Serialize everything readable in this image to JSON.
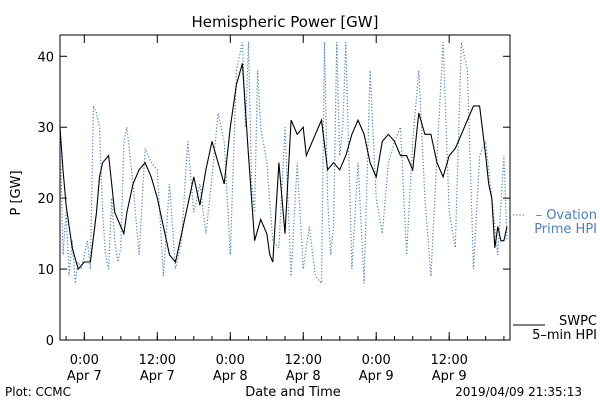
{
  "chart_data": {
    "type": "line",
    "title": "Hemispheric Power [GW]",
    "ylabel": "P [GW]",
    "xlabel": "Date and Time",
    "ylim": [
      0,
      43
    ],
    "yticks": [
      0,
      10,
      20,
      30,
      40
    ],
    "xlim": [
      "2019-04-06T20:00",
      "2019-04-09T22:00"
    ],
    "xticks": [
      {
        "time": "2019-04-07T00:00",
        "line1": "0:00",
        "line2": "Apr 7"
      },
      {
        "time": "2019-04-07T12:00",
        "line1": "12:00",
        "line2": "Apr 7"
      },
      {
        "time": "2019-04-08T00:00",
        "line1": "0:00",
        "line2": "Apr 8"
      },
      {
        "time": "2019-04-08T12:00",
        "line1": "12:00",
        "line2": "Apr 8"
      },
      {
        "time": "2019-04-09T00:00",
        "line1": "0:00",
        "line2": "Apr 9"
      },
      {
        "time": "2019-04-09T12:00",
        "line1": "12:00",
        "line2": "Apr 9"
      }
    ],
    "grid": false,
    "legend_placement": "right",
    "series": [
      {
        "name": "Ovation Prime HPI",
        "legend_lines": [
          "– Ovation",
          "Prime HPI"
        ],
        "color": "#4a7fc0",
        "style": "dotted",
        "x": [
          "2019-04-06T20:00",
          "2019-04-06T20:30",
          "2019-04-06T21:00",
          "2019-04-06T21:30",
          "2019-04-06T22:00",
          "2019-04-06T22:30",
          "2019-04-06T23:00",
          "2019-04-06T23:30",
          "2019-04-07T00:00",
          "2019-04-07T00:30",
          "2019-04-07T01:00",
          "2019-04-07T01:30",
          "2019-04-07T02:00",
          "2019-04-07T02:30",
          "2019-04-07T03:00",
          "2019-04-07T03:30",
          "2019-04-07T04:00",
          "2019-04-07T04:30",
          "2019-04-07T05:00",
          "2019-04-07T05:30",
          "2019-04-07T06:00",
          "2019-04-07T06:30",
          "2019-04-07T07:00",
          "2019-04-07T08:00",
          "2019-04-07T09:00",
          "2019-04-07T10:00",
          "2019-04-07T11:00",
          "2019-04-07T12:00",
          "2019-04-07T13:00",
          "2019-04-07T14:00",
          "2019-04-07T15:00",
          "2019-04-07T16:00",
          "2019-04-07T17:00",
          "2019-04-07T18:00",
          "2019-04-07T19:00",
          "2019-04-07T20:00",
          "2019-04-07T21:00",
          "2019-04-07T22:00",
          "2019-04-07T23:00",
          "2019-04-08T00:00",
          "2019-04-08T01:00",
          "2019-04-08T02:00",
          "2019-04-08T02:30",
          "2019-04-08T03:00",
          "2019-04-08T03:30",
          "2019-04-08T04:00",
          "2019-04-08T04:30",
          "2019-04-08T05:00",
          "2019-04-08T06:00",
          "2019-04-08T07:00",
          "2019-04-08T08:00",
          "2019-04-08T09:00",
          "2019-04-08T10:00",
          "2019-04-08T11:00",
          "2019-04-08T12:00",
          "2019-04-08T13:00",
          "2019-04-08T14:00",
          "2019-04-08T15:00",
          "2019-04-08T15:30",
          "2019-04-08T16:00",
          "2019-04-08T16:30",
          "2019-04-08T17:00",
          "2019-04-08T17:30",
          "2019-04-08T18:00",
          "2019-04-08T18:30",
          "2019-04-08T19:00",
          "2019-04-08T20:00",
          "2019-04-08T21:00",
          "2019-04-08T22:00",
          "2019-04-08T23:00",
          "2019-04-09T00:00",
          "2019-04-09T01:00",
          "2019-04-09T02:00",
          "2019-04-09T03:00",
          "2019-04-09T04:00",
          "2019-04-09T05:00",
          "2019-04-09T06:00",
          "2019-04-09T07:00",
          "2019-04-09T08:00",
          "2019-04-09T09:00",
          "2019-04-09T10:00",
          "2019-04-09T11:00",
          "2019-04-09T12:00",
          "2019-04-09T13:00",
          "2019-04-09T14:00",
          "2019-04-09T15:00",
          "2019-04-09T16:00",
          "2019-04-09T17:00",
          "2019-04-09T18:00",
          "2019-04-09T19:00",
          "2019-04-09T20:00",
          "2019-04-09T21:00",
          "2019-04-09T21:30"
        ],
        "values": [
          30,
          12,
          18,
          9,
          14,
          8,
          11,
          10,
          12,
          14,
          10,
          33,
          32,
          30,
          18,
          12,
          10,
          20,
          14,
          11,
          13,
          28,
          30,
          22,
          12,
          27,
          25,
          24,
          9,
          22,
          10,
          14,
          28,
          18,
          22,
          15,
          23,
          32,
          28,
          12,
          38,
          42,
          30,
          42,
          22,
          18,
          38,
          30,
          25,
          14,
          13,
          30,
          9,
          25,
          10,
          16,
          9,
          8,
          42,
          20,
          12,
          16,
          42,
          26,
          30,
          42,
          10,
          25,
          8,
          38,
          20,
          15,
          25,
          28,
          30,
          12,
          28,
          38,
          20,
          9,
          26,
          42,
          18,
          13,
          42,
          38,
          10,
          26,
          28,
          20,
          12,
          26,
          14
        ]
      },
      {
        "name": "SWPC 5-min HPI",
        "legend_lines": [
          "SWPC",
          "5–min HPI"
        ],
        "color": "#000000",
        "style": "solid",
        "x": [
          "2019-04-06T20:00",
          "2019-04-06T20:30",
          "2019-04-06T21:00",
          "2019-04-06T22:00",
          "2019-04-06T23:00",
          "2019-04-07T00:00",
          "2019-04-07T00:30",
          "2019-04-07T01:00",
          "2019-04-07T02:00",
          "2019-04-07T02:30",
          "2019-04-07T03:00",
          "2019-04-07T04:00",
          "2019-04-07T04:30",
          "2019-04-07T05:00",
          "2019-04-07T06:00",
          "2019-04-07T06:30",
          "2019-04-07T07:00",
          "2019-04-07T08:00",
          "2019-04-07T09:00",
          "2019-04-07T10:00",
          "2019-04-07T11:00",
          "2019-04-07T12:00",
          "2019-04-07T13:00",
          "2019-04-07T14:00",
          "2019-04-07T15:00",
          "2019-04-07T16:00",
          "2019-04-07T17:00",
          "2019-04-07T18:00",
          "2019-04-07T19:00",
          "2019-04-07T20:00",
          "2019-04-07T21:00",
          "2019-04-07T22:00",
          "2019-04-07T23:00",
          "2019-04-08T00:00",
          "2019-04-08T01:00",
          "2019-04-08T02:00",
          "2019-04-08T03:00",
          "2019-04-08T04:00",
          "2019-04-08T05:00",
          "2019-04-08T06:00",
          "2019-04-08T06:30",
          "2019-04-08T07:00",
          "2019-04-08T08:00",
          "2019-04-08T09:00",
          "2019-04-08T10:00",
          "2019-04-08T11:00",
          "2019-04-08T12:00",
          "2019-04-08T12:30",
          "2019-04-08T13:00",
          "2019-04-08T14:00",
          "2019-04-08T15:00",
          "2019-04-08T16:00",
          "2019-04-08T17:00",
          "2019-04-08T18:00",
          "2019-04-08T19:00",
          "2019-04-08T20:00",
          "2019-04-08T21:00",
          "2019-04-08T22:00",
          "2019-04-08T23:00",
          "2019-04-09T00:00",
          "2019-04-09T01:00",
          "2019-04-09T02:00",
          "2019-04-09T03:00",
          "2019-04-09T04:00",
          "2019-04-09T05:00",
          "2019-04-09T06:00",
          "2019-04-09T07:00",
          "2019-04-09T08:00",
          "2019-04-09T09:00",
          "2019-04-09T10:00",
          "2019-04-09T11:00",
          "2019-04-09T12:00",
          "2019-04-09T13:00",
          "2019-04-09T14:00",
          "2019-04-09T15:00",
          "2019-04-09T16:00",
          "2019-04-09T17:00",
          "2019-04-09T18:00",
          "2019-04-09T18:30",
          "2019-04-09T19:00",
          "2019-04-09T19:30",
          "2019-04-09T20:00",
          "2019-04-09T20:30",
          "2019-04-09T21:00",
          "2019-04-09T21:30"
        ],
        "values": [
          30,
          24,
          19,
          13,
          10,
          11,
          11,
          11,
          18,
          23,
          25,
          26,
          22,
          18,
          16,
          15,
          18,
          22,
          24,
          25,
          23,
          20,
          16,
          12,
          11,
          15,
          19,
          23,
          19,
          24,
          28,
          25,
          22,
          30,
          36,
          39,
          26,
          14,
          17,
          15,
          12,
          11,
          25,
          15,
          31,
          29,
          30,
          26,
          27,
          29,
          31,
          24,
          25,
          24,
          26,
          29,
          31,
          29,
          25,
          23,
          28,
          29,
          28,
          26,
          26,
          24,
          32,
          29,
          29,
          25,
          23,
          26,
          27,
          29,
          31,
          33,
          33,
          26,
          22,
          20,
          13,
          16,
          14,
          14,
          16
        ]
      }
    ]
  },
  "footer": {
    "plot_credit": "Plot: CCMC",
    "timestamp": "2019/04/09 21:35:13"
  }
}
